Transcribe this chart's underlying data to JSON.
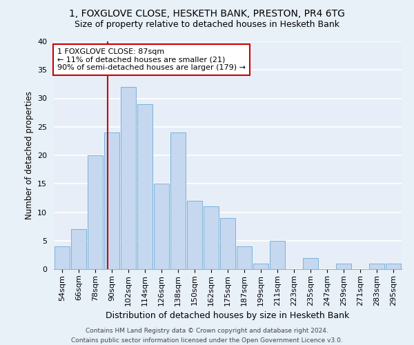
{
  "title": "1, FOXGLOVE CLOSE, HESKETH BANK, PRESTON, PR4 6TG",
  "subtitle": "Size of property relative to detached houses in Hesketh Bank",
  "xlabel": "Distribution of detached houses by size in Hesketh Bank",
  "ylabel": "Number of detached properties",
  "footer_line1": "Contains HM Land Registry data © Crown copyright and database right 2024.",
  "footer_line2": "Contains public sector information licensed under the Open Government Licence v3.0.",
  "categories": [
    "54sqm",
    "66sqm",
    "78sqm",
    "90sqm",
    "102sqm",
    "114sqm",
    "126sqm",
    "138sqm",
    "150sqm",
    "162sqm",
    "175sqm",
    "187sqm",
    "199sqm",
    "211sqm",
    "223sqm",
    "235sqm",
    "247sqm",
    "259sqm",
    "271sqm",
    "283sqm",
    "295sqm"
  ],
  "values": [
    4,
    7,
    20,
    24,
    32,
    29,
    15,
    24,
    12,
    11,
    9,
    4,
    1,
    5,
    0,
    2,
    0,
    1,
    0,
    1,
    1
  ],
  "bar_color": "#c5d8ef",
  "bar_edgecolor": "#6aaad4",
  "vline_color": "#cc0000",
  "annotation_text": "1 FOXGLOVE CLOSE: 87sqm\n← 11% of detached houses are smaller (21)\n90% of semi-detached houses are larger (179) →",
  "annotation_box_edgecolor": "#cc0000",
  "annotation_box_facecolor": "#ffffff",
  "ylim": [
    0,
    40
  ],
  "yticks": [
    0,
    5,
    10,
    15,
    20,
    25,
    30,
    35,
    40
  ],
  "background_color": "#e8eef8",
  "grid_color": "#ffffff",
  "title_fontsize": 10,
  "subtitle_fontsize": 9,
  "xlabel_fontsize": 9,
  "ylabel_fontsize": 8.5,
  "tick_fontsize": 8,
  "annotation_fontsize": 8,
  "footer_fontsize": 6.5
}
